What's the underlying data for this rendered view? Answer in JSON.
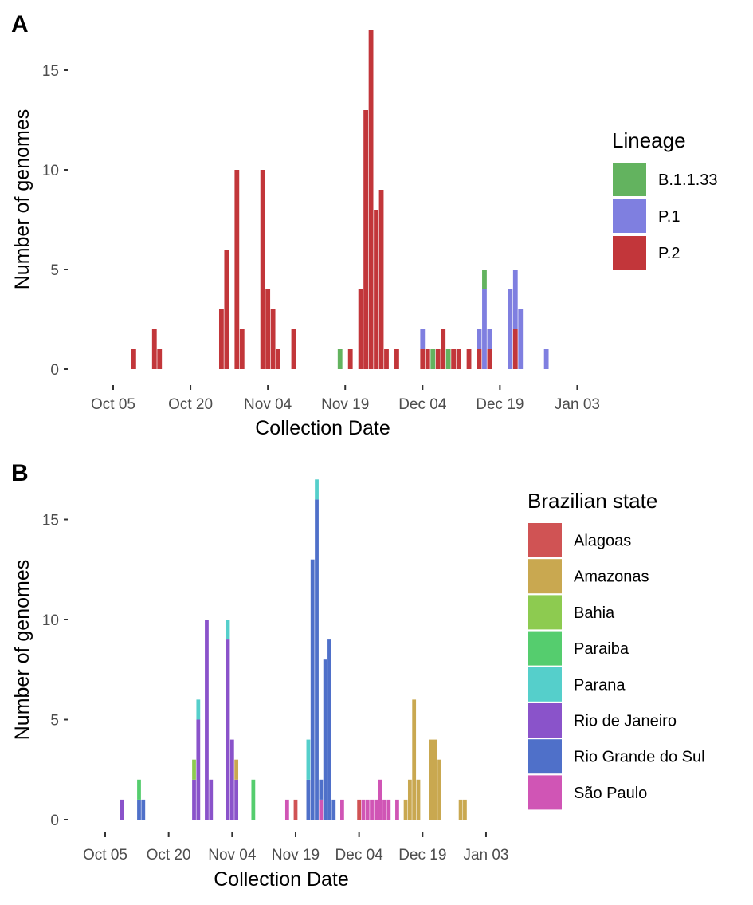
{
  "chart_data": [
    {
      "panel_label": "A",
      "type": "bar",
      "stacked": true,
      "xlabel": "Collection Date",
      "ylabel": "Number of genomes",
      "ylim": [
        0,
        17.5
      ],
      "yticks": [
        0,
        5,
        10,
        15
      ],
      "xlim": [
        "2020-09-30",
        "2021-01-07"
      ],
      "xticks": [
        {
          "date": "2020-10-05",
          "label": "Oct 05"
        },
        {
          "date": "2020-10-20",
          "label": "Oct 20"
        },
        {
          "date": "2020-11-04",
          "label": "Nov 04"
        },
        {
          "date": "2020-11-19",
          "label": "Nov 19"
        },
        {
          "date": "2020-12-04",
          "label": "Dec 04"
        },
        {
          "date": "2020-12-19",
          "label": "Dec 19"
        },
        {
          "date": "2021-01-03",
          "label": "Jan 03"
        }
      ],
      "legend": {
        "title": "Lineage",
        "position": "right"
      },
      "grid": false,
      "series": [
        {
          "name": "B.1.1.33",
          "color": "#63b35f",
          "points": [
            [
              "2020-11-18",
              1
            ],
            [
              "2020-12-06",
              1
            ],
            [
              "2020-12-09",
              1
            ],
            [
              "2020-12-16",
              1
            ]
          ]
        },
        {
          "name": "P.1",
          "color": "#7f7fe0",
          "points": [
            [
              "2020-12-04",
              1
            ],
            [
              "2020-12-15",
              1
            ],
            [
              "2020-12-16",
              4
            ],
            [
              "2020-12-17",
              1
            ],
            [
              "2020-12-21",
              4
            ],
            [
              "2020-12-22",
              3
            ],
            [
              "2020-12-23",
              3
            ],
            [
              "2020-12-28",
              1
            ]
          ]
        },
        {
          "name": "P.2",
          "color": "#c2363a",
          "points": [
            [
              "2020-10-09",
              1
            ],
            [
              "2020-10-13",
              2
            ],
            [
              "2020-10-14",
              1
            ],
            [
              "2020-10-26",
              3
            ],
            [
              "2020-10-27",
              6
            ],
            [
              "2020-10-29",
              10
            ],
            [
              "2020-10-30",
              2
            ],
            [
              "2020-11-03",
              10
            ],
            [
              "2020-11-04",
              4
            ],
            [
              "2020-11-05",
              3
            ],
            [
              "2020-11-06",
              1
            ],
            [
              "2020-11-09",
              2
            ],
            [
              "2020-11-20",
              1
            ],
            [
              "2020-11-22",
              4
            ],
            [
              "2020-11-23",
              13
            ],
            [
              "2020-11-24",
              17
            ],
            [
              "2020-11-25",
              8
            ],
            [
              "2020-11-26",
              9
            ],
            [
              "2020-11-27",
              1
            ],
            [
              "2020-11-29",
              1
            ],
            [
              "2020-12-04",
              1
            ],
            [
              "2020-12-05",
              1
            ],
            [
              "2020-12-07",
              1
            ],
            [
              "2020-12-08",
              2
            ],
            [
              "2020-12-10",
              1
            ],
            [
              "2020-12-11",
              1
            ],
            [
              "2020-12-13",
              1
            ],
            [
              "2020-12-15",
              1
            ],
            [
              "2020-12-17",
              1
            ],
            [
              "2020-12-22",
              2
            ]
          ]
        }
      ]
    },
    {
      "panel_label": "B",
      "type": "bar",
      "stacked": true,
      "xlabel": "Collection Date",
      "ylabel": "Number of genomes",
      "ylim": [
        0,
        17.5
      ],
      "yticks": [
        0,
        5,
        10,
        15
      ],
      "xlim": [
        "2020-09-30",
        "2021-01-07"
      ],
      "xticks": [
        {
          "date": "2020-10-05",
          "label": "Oct 05"
        },
        {
          "date": "2020-10-20",
          "label": "Oct 20"
        },
        {
          "date": "2020-11-04",
          "label": "Nov 04"
        },
        {
          "date": "2020-11-19",
          "label": "Nov 19"
        },
        {
          "date": "2020-12-04",
          "label": "Dec 04"
        },
        {
          "date": "2020-12-19",
          "label": "Dec 19"
        },
        {
          "date": "2021-01-03",
          "label": "Jan 03"
        }
      ],
      "legend": {
        "title": "Brazilian state",
        "position": "right"
      },
      "grid": false,
      "series": [
        {
          "name": "Alagoas",
          "color": "#d05354",
          "points": [
            [
              "2020-11-19",
              1
            ],
            [
              "2020-12-04",
              1
            ]
          ]
        },
        {
          "name": "Amazonas",
          "color": "#c9a850",
          "points": [
            [
              "2020-11-05",
              1
            ],
            [
              "2020-12-15",
              1
            ],
            [
              "2020-12-16",
              2
            ],
            [
              "2020-12-17",
              6
            ],
            [
              "2020-12-18",
              2
            ],
            [
              "2020-12-21",
              4
            ],
            [
              "2020-12-22",
              4
            ],
            [
              "2020-12-23",
              3
            ],
            [
              "2020-12-28",
              1
            ],
            [
              "2020-12-29",
              1
            ]
          ]
        },
        {
          "name": "Bahia",
          "color": "#8dcb50",
          "points": [
            [
              "2020-10-26",
              1
            ]
          ]
        },
        {
          "name": "Paraiba",
          "color": "#55cd6e",
          "points": [
            [
              "2020-10-13",
              1
            ],
            [
              "2020-11-09",
              2
            ]
          ]
        },
        {
          "name": "Parana",
          "color": "#55cfcb",
          "points": [
            [
              "2020-10-27",
              1
            ],
            [
              "2020-11-03",
              1
            ],
            [
              "2020-11-22",
              2
            ],
            [
              "2020-11-24",
              1
            ]
          ]
        },
        {
          "name": "Rio de Janeiro",
          "color": "#8a53ca",
          "points": [
            [
              "2020-10-09",
              1
            ],
            [
              "2020-10-26",
              2
            ],
            [
              "2020-10-27",
              5
            ],
            [
              "2020-10-29",
              10
            ],
            [
              "2020-10-30",
              2
            ],
            [
              "2020-11-03",
              9
            ],
            [
              "2020-11-04",
              4
            ],
            [
              "2020-11-05",
              2
            ]
          ]
        },
        {
          "name": "Rio Grande do Sul",
          "color": "#4f70c9",
          "points": [
            [
              "2020-10-13",
              1
            ],
            [
              "2020-10-14",
              1
            ],
            [
              "2020-11-22",
              2
            ],
            [
              "2020-11-23",
              13
            ],
            [
              "2020-11-24",
              16
            ],
            [
              "2020-11-25",
              1
            ],
            [
              "2020-11-26",
              8
            ],
            [
              "2020-11-27",
              9
            ],
            [
              "2020-11-28",
              1
            ]
          ]
        },
        {
          "name": "São Paulo",
          "color": "#d055b5",
          "points": [
            [
              "2020-11-17",
              1
            ],
            [
              "2020-11-25",
              1
            ],
            [
              "2020-11-30",
              1
            ],
            [
              "2020-12-05",
              1
            ],
            [
              "2020-12-06",
              1
            ],
            [
              "2020-12-07",
              1
            ],
            [
              "2020-12-08",
              1
            ],
            [
              "2020-12-09",
              2
            ],
            [
              "2020-12-10",
              1
            ],
            [
              "2020-12-11",
              1
            ],
            [
              "2020-12-13",
              1
            ]
          ]
        }
      ]
    }
  ]
}
